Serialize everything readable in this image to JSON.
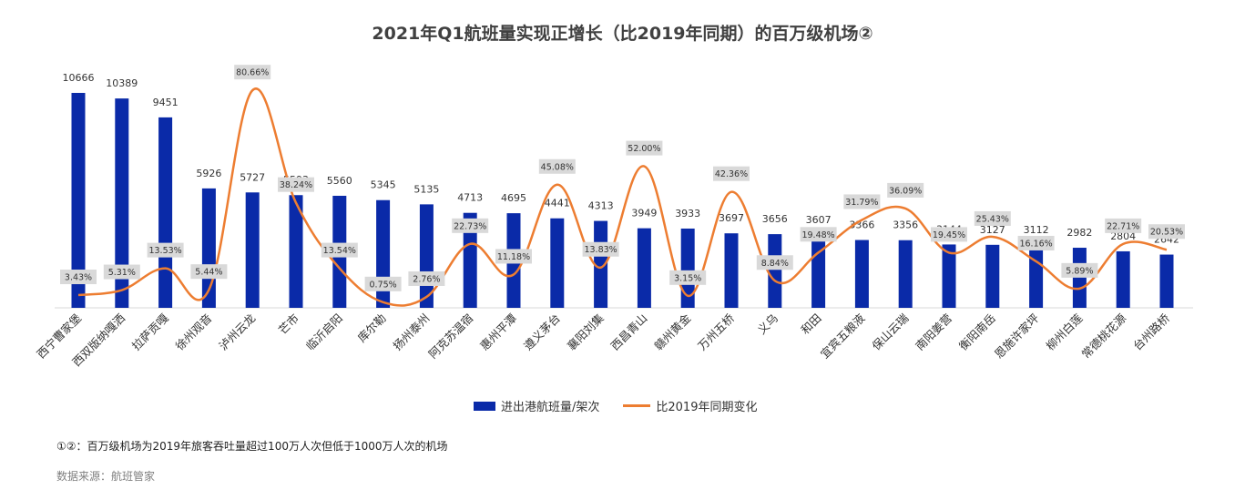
{
  "chart_data": {
    "type": "bar",
    "title": "2021年Q1航班量实现正增长（比2019年同期）的百万级机场②",
    "categories": [
      "西宁曹家堡",
      "西双版纳嘎洒",
      "拉萨贡嘎",
      "徐州观音",
      "泸州云龙",
      "芒市",
      "临沂启阳",
      "库尔勒",
      "扬州泰州",
      "阿克苏温宿",
      "惠州平潭",
      "遵义茅台",
      "襄阳刘集",
      "西昌青山",
      "赣州黄金",
      "万州五桥",
      "义乌",
      "和田",
      "宜宾五粮液",
      "保山云瑞",
      "南阳姜营",
      "衡阳南岳",
      "恩施许家坪",
      "柳州白莲",
      "常德桃花源",
      "台州路桥"
    ],
    "series": [
      {
        "name": "进出港航班量/架次",
        "type": "bar",
        "values": [
          10666,
          10389,
          9451,
          5926,
          5727,
          5593,
          5560,
          5345,
          5135,
          4713,
          4695,
          4441,
          4313,
          3949,
          3933,
          3697,
          3656,
          3607,
          3366,
          3356,
          3144,
          3127,
          3112,
          2982,
          2804,
          2642
        ],
        "labels": [
          "10666",
          "10389",
          "9451",
          "5926",
          "5727",
          "5593",
          "5560",
          "5345",
          "5135",
          "4713",
          "4695",
          "4441",
          "4313",
          "3949",
          "3933",
          "3697",
          "3656",
          "3607",
          "3366",
          "3356",
          "3144",
          "3127",
          "3112",
          "2982",
          "2804",
          "2642"
        ]
      },
      {
        "name": "比2019年同期变化",
        "type": "line",
        "values": [
          3.43,
          5.31,
          13.53,
          5.44,
          80.66,
          38.24,
          13.54,
          0.75,
          2.76,
          22.73,
          11.18,
          45.08,
          13.83,
          52.0,
          3.15,
          42.36,
          8.84,
          19.48,
          31.79,
          36.09,
          19.45,
          25.43,
          16.16,
          5.89,
          22.71,
          20.53
        ],
        "labels": [
          "3.43%",
          "5.31%",
          "13.53%",
          "5.44%",
          "80.66%",
          "38.24%",
          "13.54%",
          "0.75%",
          "2.76%",
          "22.73%",
          "11.18%",
          "45.08%",
          "13.83%",
          "52.00%",
          "3.15%",
          "42.36%",
          "8.84%",
          "19.48%",
          "31.79%",
          "36.09%",
          "19.45%",
          "25.43%",
          "16.16%",
          "5.89%",
          "22.71%",
          "20.53%"
        ]
      }
    ],
    "ylim_bars": [
      0,
      12000
    ],
    "ylim_line": [
      0,
      90
    ],
    "legend_position": "bottom",
    "grid": false,
    "colors": {
      "bar": "#0a2aa8",
      "line": "#ed7d31",
      "label_box": "#d9d9d9"
    }
  },
  "footnote": "①②：百万级机场为2019年旅客吞吐量超过100万人次但低于1000万人次的机场",
  "source": "数据来源：航班管家"
}
